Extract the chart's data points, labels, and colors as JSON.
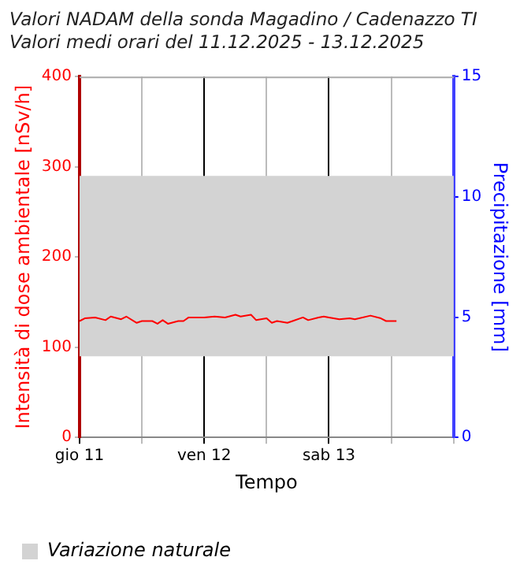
{
  "chart_data": {
    "type": "line",
    "title": "Valori NADAM della sonda Magadino / Cadenazzo TI",
    "subtitle": "Valori medi orari del 11.12.2025 - 13.12.2025",
    "xlabel": "Tempo",
    "ylabel": "Intensità di dose ambientale [nSv/h]",
    "y2label": "Precipitazione [mm]",
    "x": [
      "2025-12-11T00:00",
      "2025-12-11T01:00",
      "2025-12-11T03:00",
      "2025-12-11T05:00",
      "2025-12-11T06:00",
      "2025-12-11T08:00",
      "2025-12-11T09:00",
      "2025-12-11T11:00",
      "2025-12-11T12:00",
      "2025-12-11T14:00",
      "2025-12-11T15:00",
      "2025-12-11T16:00",
      "2025-12-11T17:00",
      "2025-12-11T19:00",
      "2025-12-11T20:00",
      "2025-12-11T21:00",
      "2025-12-12T00:00",
      "2025-12-12T02:00",
      "2025-12-12T04:00",
      "2025-12-12T06:00",
      "2025-12-12T07:00",
      "2025-12-12T09:00",
      "2025-12-12T10:00",
      "2025-12-12T12:00",
      "2025-12-12T13:00",
      "2025-12-12T14:00",
      "2025-12-12T16:00",
      "2025-12-12T17:00",
      "2025-12-12T19:00",
      "2025-12-12T20:00",
      "2025-12-12T22:00",
      "2025-12-12T23:00",
      "2025-12-13T00:00",
      "2025-12-13T02:00",
      "2025-12-13T04:00",
      "2025-12-13T05:00",
      "2025-12-13T08:00",
      "2025-12-13T10:00",
      "2025-12-13T11:00",
      "2025-12-13T13:00"
    ],
    "series": [
      {
        "color": "#ff0000",
        "values": [
          129,
          132,
          133,
          130,
          134,
          131,
          134,
          127,
          129,
          129,
          126,
          130,
          126,
          129,
          129,
          133,
          133,
          134,
          133,
          136,
          134,
          136,
          130,
          132,
          127,
          129,
          127,
          129,
          133,
          130,
          133,
          134,
          133,
          131,
          132,
          131,
          135,
          132,
          129,
          129
        ]
      }
    ],
    "xlim": [
      "2025-12-11",
      "2025-12-14"
    ],
    "xticks": [
      {
        "value": "2025-12-11",
        "label": "gio 11"
      },
      {
        "value": "2025-12-11T12:00",
        "label": null
      },
      {
        "value": "2025-12-12",
        "label": "ven 12"
      },
      {
        "value": "2025-12-12T12:00",
        "label": null
      },
      {
        "value": "2025-12-13",
        "label": "sab 13"
      },
      {
        "value": "2025-12-13T12:00",
        "label": null
      },
      {
        "value": "2025-12-14",
        "label": null
      }
    ],
    "ylim": [
      0,
      400
    ],
    "yticks": [
      0,
      100,
      200,
      300,
      400
    ],
    "y2lim": [
      0,
      15
    ],
    "y2ticks": [
      0,
      5,
      10,
      15
    ],
    "bands": [
      {
        "axis": "y",
        "from": 90,
        "to": 290,
        "label": "Variazione naturale",
        "color": "#d3d3d3"
      }
    ],
    "grid": "x",
    "legend": "bottom left",
    "marker": "none",
    "line_style": "solid"
  }
}
